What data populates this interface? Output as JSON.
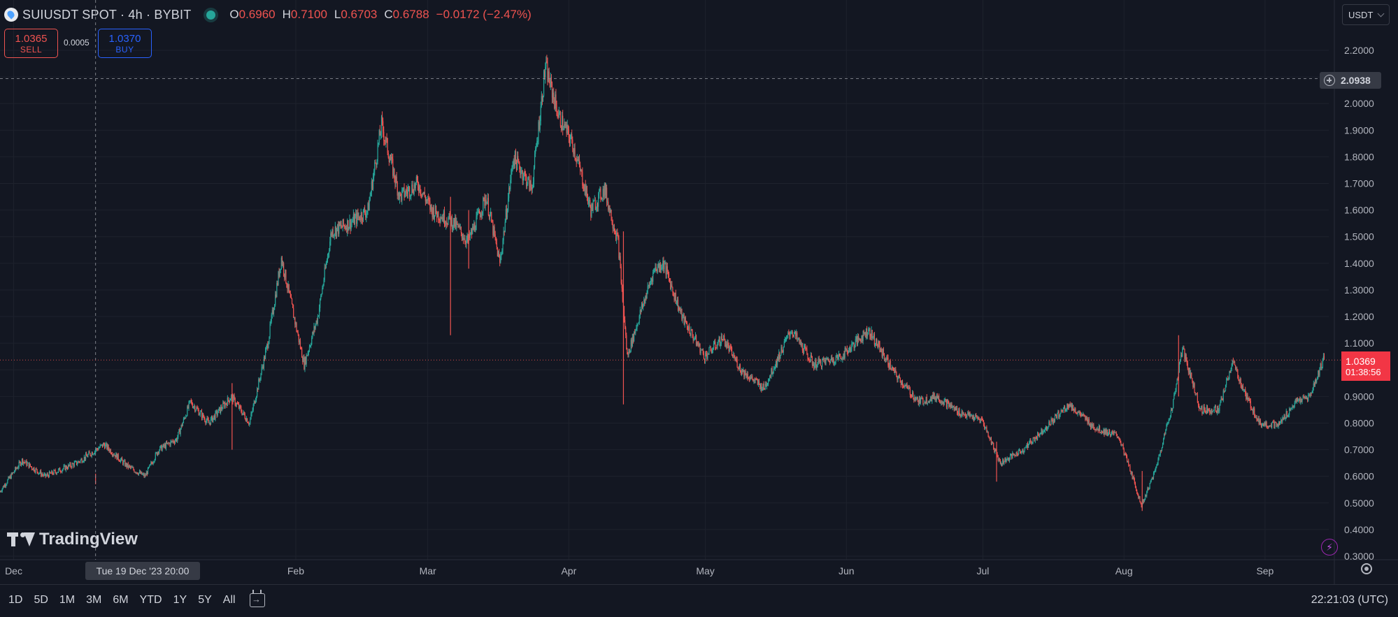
{
  "header": {
    "symbol": "SUIUSDT SPOT · 4h · BYBIT",
    "ohlc": [
      {
        "key": "O",
        "value": "0.6960"
      },
      {
        "key": "H",
        "value": "0.7100"
      },
      {
        "key": "L",
        "value": "0.6703"
      },
      {
        "key": "C",
        "value": "0.6788"
      }
    ],
    "change": "−0.0172 (−2.47%)"
  },
  "trade": {
    "sell_price": "1.0365",
    "sell_label": "SELL",
    "spread": "0.0005",
    "buy_price": "1.0370",
    "buy_label": "BUY"
  },
  "currency": "USDT",
  "crosshair": {
    "price_label": "2.0938",
    "date_label": "Tue 19 Dec '23   20:00"
  },
  "last_price": {
    "value": "1.0369",
    "countdown": "01:38:56"
  },
  "logo": "TradingView",
  "ranges": [
    "1D",
    "5D",
    "1M",
    "3M",
    "6M",
    "YTD",
    "1Y",
    "5Y",
    "All"
  ],
  "clock": "22:21:03 (UTC)",
  "colors": {
    "background": "#131722",
    "up": "#26a69a",
    "down": "#ef5350",
    "grid": "#1e222d",
    "accent": "#2962ff"
  },
  "chart_data": {
    "type": "candlestick",
    "y_axis": {
      "min": 0.3,
      "max": 2.2,
      "step": 0.1,
      "unit": "USDT",
      "position": "right"
    },
    "y_ticks": [
      "2.2000",
      "2.1000",
      "2.0000",
      "1.9000",
      "1.8000",
      "1.7000",
      "1.6000",
      "1.5000",
      "1.4000",
      "1.3000",
      "1.2000",
      "1.1000",
      "1.0000",
      "0.9000",
      "0.8000",
      "0.7000",
      "0.6000",
      "0.5000",
      "0.4000",
      "0.3000"
    ],
    "x_ticks": [
      "Dec",
      "Feb",
      "Mar",
      "Apr",
      "May",
      "Jun",
      "Jul",
      "Aug",
      "Sep"
    ],
    "x_range": [
      "2023-11-28",
      "2024-09-15"
    ],
    "x_tick_dates": [
      "2023-12-01",
      "2024-02-01",
      "2024-03-01",
      "2024-04-01",
      "2024-05-01",
      "2024-06-01",
      "2024-07-01",
      "2024-08-01",
      "2024-09-01"
    ],
    "price_path": [
      [
        "2023-11-28",
        0.54
      ],
      [
        "2023-12-03",
        0.66
      ],
      [
        "2023-12-08",
        0.6
      ],
      [
        "2023-12-15",
        0.65
      ],
      [
        "2023-12-21",
        0.72
      ],
      [
        "2023-12-26",
        0.64
      ],
      [
        "2023-12-30",
        0.6
      ],
      [
        "2024-01-02",
        0.7
      ],
      [
        "2024-01-06",
        0.74
      ],
      [
        "2024-01-09",
        0.88
      ],
      [
        "2024-01-13",
        0.8
      ],
      [
        "2024-01-18",
        0.9
      ],
      [
        "2024-01-22",
        0.8
      ],
      [
        "2024-01-26",
        1.1
      ],
      [
        "2024-01-29",
        1.42
      ],
      [
        "2024-02-03",
        1.02
      ],
      [
        "2024-02-06",
        1.2
      ],
      [
        "2024-02-09",
        1.52
      ],
      [
        "2024-02-13",
        1.55
      ],
      [
        "2024-02-17",
        1.6
      ],
      [
        "2024-02-20",
        1.92
      ],
      [
        "2024-02-24",
        1.65
      ],
      [
        "2024-02-28",
        1.7
      ],
      [
        "2024-03-02",
        1.6
      ],
      [
        "2024-03-07",
        1.55
      ],
      [
        "2024-03-10",
        1.48
      ],
      [
        "2024-03-14",
        1.65
      ],
      [
        "2024-03-17",
        1.4
      ],
      [
        "2024-03-20",
        1.8
      ],
      [
        "2024-03-24",
        1.68
      ],
      [
        "2024-03-27",
        2.14
      ],
      [
        "2024-03-30",
        1.95
      ],
      [
        "2024-04-02",
        1.85
      ],
      [
        "2024-04-06",
        1.6
      ],
      [
        "2024-04-09",
        1.68
      ],
      [
        "2024-04-12",
        1.48
      ],
      [
        "2024-04-14",
        1.05
      ],
      [
        "2024-04-17",
        1.22
      ],
      [
        "2024-04-20",
        1.38
      ],
      [
        "2024-04-22",
        1.4
      ],
      [
        "2024-04-26",
        1.2
      ],
      [
        "2024-05-01",
        1.05
      ],
      [
        "2024-05-05",
        1.12
      ],
      [
        "2024-05-09",
        1.0
      ],
      [
        "2024-05-14",
        0.93
      ],
      [
        "2024-05-20",
        1.15
      ],
      [
        "2024-05-25",
        1.02
      ],
      [
        "2024-05-31",
        1.05
      ],
      [
        "2024-06-06",
        1.15
      ],
      [
        "2024-06-12",
        0.98
      ],
      [
        "2024-06-17",
        0.88
      ],
      [
        "2024-06-21",
        0.9
      ],
      [
        "2024-06-26",
        0.84
      ],
      [
        "2024-07-01",
        0.81
      ],
      [
        "2024-07-05",
        0.65
      ],
      [
        "2024-07-10",
        0.7
      ],
      [
        "2024-07-20",
        0.87
      ],
      [
        "2024-07-26",
        0.78
      ],
      [
        "2024-07-31",
        0.75
      ],
      [
        "2024-08-03",
        0.6
      ],
      [
        "2024-08-05",
        0.49
      ],
      [
        "2024-08-08",
        0.62
      ],
      [
        "2024-08-12",
        0.88
      ],
      [
        "2024-08-14",
        1.08
      ],
      [
        "2024-08-18",
        0.85
      ],
      [
        "2024-08-22",
        0.85
      ],
      [
        "2024-08-25",
        1.03
      ],
      [
        "2024-08-28",
        0.9
      ],
      [
        "2024-08-31",
        0.8
      ],
      [
        "2024-09-04",
        0.79
      ],
      [
        "2024-09-08",
        0.88
      ],
      [
        "2024-09-11",
        0.9
      ],
      [
        "2024-09-14",
        1.04
      ]
    ],
    "wicks": [
      [
        "2023-12-19",
        0.61,
        0.57
      ],
      [
        "2024-01-18",
        0.95,
        0.7
      ],
      [
        "2024-03-06",
        1.65,
        1.13
      ],
      [
        "2024-04-13",
        1.52,
        0.87
      ],
      [
        "2024-07-04",
        0.73,
        0.58
      ],
      [
        "2024-08-05",
        0.62,
        0.47
      ],
      [
        "2024-08-13",
        1.13,
        0.9
      ],
      [
        "2024-03-10",
        1.6,
        1.38
      ]
    ],
    "last_price": 1.0369,
    "crosshair": {
      "date": "2023-12-19",
      "price": 2.0938
    }
  }
}
